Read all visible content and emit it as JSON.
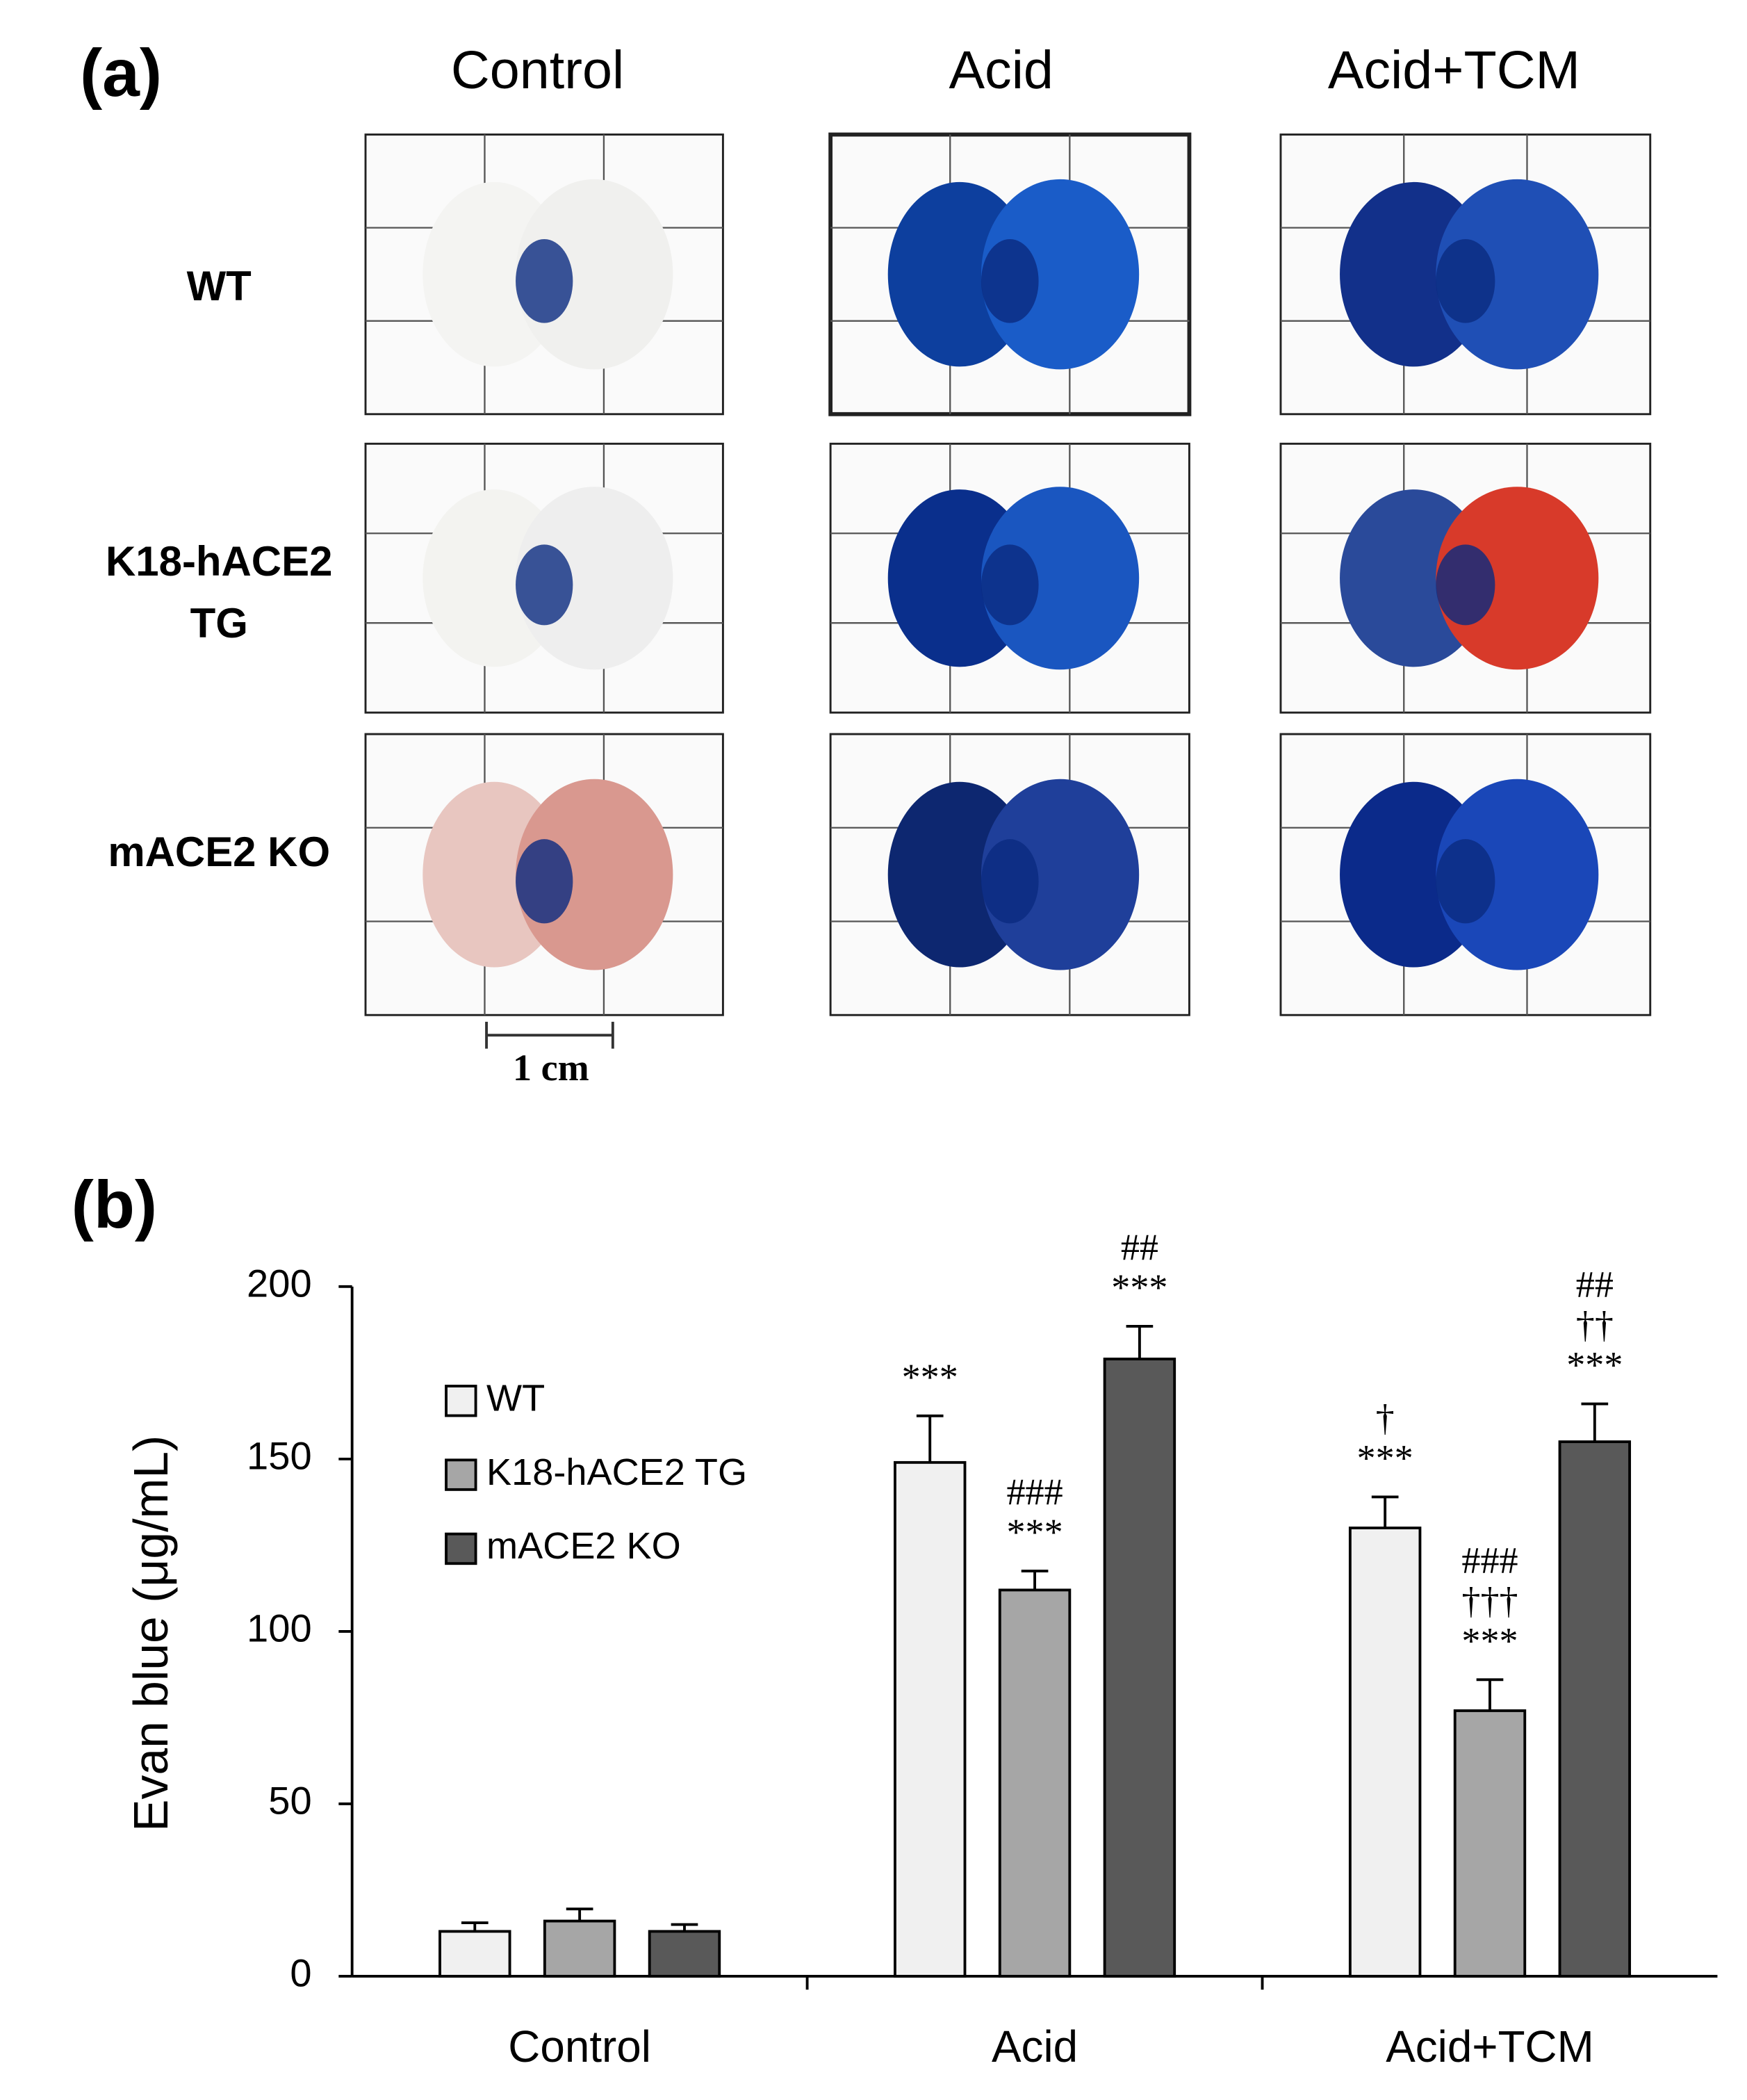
{
  "panel_a": {
    "label": "(a)",
    "columns": [
      "Control",
      "Acid",
      "Acid+TCM"
    ],
    "rows": [
      [
        "WT"
      ],
      [
        "K18-hACE2",
        "TG"
      ],
      [
        "mACE2 KO"
      ]
    ],
    "scale_bar": "1 cm"
  },
  "panel_b": {
    "label": "(b)"
  },
  "chart_data": {
    "type": "bar",
    "ylabel": "Evan blue (μg/mL)",
    "categories": [
      "Control",
      "Acid",
      "Acid+TCM"
    ],
    "ylim": [
      0,
      200
    ],
    "yticks": [
      0,
      50,
      100,
      150,
      200
    ],
    "grid": false,
    "legend": "upper left",
    "series": [
      {
        "name": "WT",
        "color": "#f0f0f0",
        "values": [
          13,
          149,
          130
        ],
        "errors": [
          2.5,
          13.5,
          9
        ],
        "annotations": [
          null,
          [
            "***"
          ],
          [
            "†",
            "***"
          ]
        ]
      },
      {
        "name": "K18-hACE2 TG",
        "color": "#a6a6a6",
        "values": [
          16,
          112,
          77
        ],
        "errors": [
          3.5,
          5.5,
          9
        ],
        "annotations": [
          null,
          [
            "###",
            "***"
          ],
          [
            "###",
            "†††",
            "***"
          ]
        ]
      },
      {
        "name": "mACE2 KO",
        "color": "#595959",
        "values": [
          13,
          179,
          155
        ],
        "errors": [
          2,
          9.5,
          11
        ],
        "annotations": [
          null,
          [
            "##",
            "***"
          ],
          [
            "##",
            "††",
            "***"
          ]
        ]
      }
    ]
  }
}
